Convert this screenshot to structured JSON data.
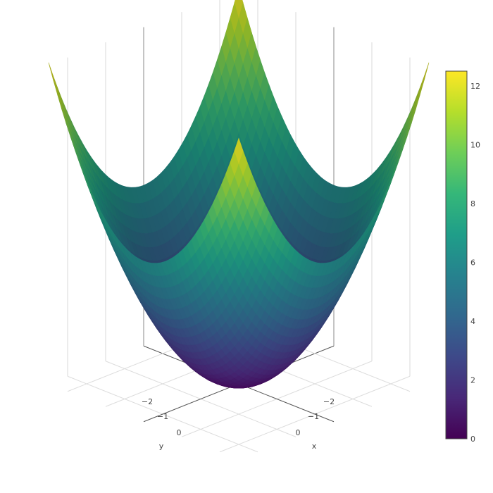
{
  "chart_data": {
    "type": "surface",
    "title": "",
    "function": "z = x^2 + y^2",
    "x_range": [
      -2.5,
      2.5
    ],
    "y_range": [
      -2.5,
      2.5
    ],
    "z_range": [
      0,
      12.5
    ],
    "x_ticks": [
      "−2",
      "−1",
      "0"
    ],
    "y_ticks": [
      "−2",
      "−1",
      "0"
    ],
    "x_axis_label": "x",
    "y_axis_label": "y",
    "colorscale": "viridis",
    "colorscale_stops": [
      "#440154",
      "#482878",
      "#3e4989",
      "#31688e",
      "#26828e",
      "#1f9e89",
      "#35b779",
      "#6ece58",
      "#b5de2b",
      "#fde725"
    ],
    "colorbar": {
      "min": 0,
      "max": 12.5,
      "ticks": [
        0,
        2,
        4,
        6,
        8,
        10,
        12
      ],
      "tick_labels": [
        "0",
        "2",
        "4",
        "6",
        "8",
        "10",
        "12"
      ]
    },
    "grid": true,
    "legend": "none"
  }
}
